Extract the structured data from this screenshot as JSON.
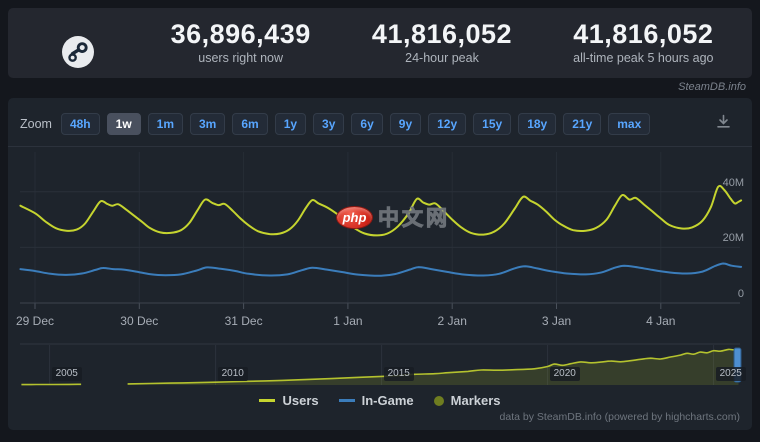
{
  "header": {
    "stats": [
      {
        "value": "36,896,439",
        "label": "users right now"
      },
      {
        "value": "41,816,052",
        "label": "24-hour peak"
      },
      {
        "value": "41,816,052",
        "label": "all-time peak 5 hours ago"
      }
    ]
  },
  "site_tag": "SteamDB.info",
  "toolbar": {
    "zoom_label": "Zoom",
    "ranges": [
      "48h",
      "1w",
      "1m",
      "3m",
      "6m",
      "1y",
      "3y",
      "6y",
      "9y",
      "12y",
      "15y",
      "18y",
      "21y",
      "max"
    ],
    "selected_range": "1w"
  },
  "watermark": {
    "badge": "php",
    "text": "中文网"
  },
  "footer": {
    "credit": "data by SteamDB.info (powered by highcharts.com)"
  },
  "colors": {
    "users": "#c5d42f",
    "in_game": "#3b7dbb",
    "markers": "#6f7d20",
    "accent_blue": "#58a6ff",
    "navigator_line": "#b4c22e",
    "navigator_fill": "rgba(180,196,46,0.16)",
    "handle": "#4e8fd0"
  },
  "chart_data": {
    "type": "line",
    "title": "",
    "x_unit": "days since 29 Dec",
    "x_ticks": [
      {
        "label": "29 Dec",
        "day": 0
      },
      {
        "label": "30 Dec",
        "day": 1
      },
      {
        "label": "31 Dec",
        "day": 2
      },
      {
        "label": "1 Jan",
        "day": 3
      },
      {
        "label": "2 Jan",
        "day": 4
      },
      {
        "label": "3 Jan",
        "day": 5
      },
      {
        "label": "4 Jan",
        "day": 6
      }
    ],
    "y_ticks": [
      {
        "label": "40M",
        "value": 40
      },
      {
        "label": "20M",
        "value": 20
      },
      {
        "label": "0",
        "value": 0
      }
    ],
    "ylim": [
      0,
      54.5
    ],
    "xlim_days": [
      -0.14,
      6.77
    ],
    "series": [
      {
        "name": "Users",
        "unit": "millions",
        "points": [
          [
            -0.14,
            35.0
          ],
          [
            0.0,
            32.3
          ],
          [
            0.1,
            29.3
          ],
          [
            0.2,
            26.9
          ],
          [
            0.3,
            26.0
          ],
          [
            0.4,
            26.4
          ],
          [
            0.48,
            28.6
          ],
          [
            0.56,
            33.0
          ],
          [
            0.63,
            36.6
          ],
          [
            0.69,
            35.7
          ],
          [
            0.74,
            35.0
          ],
          [
            0.8,
            35.5
          ],
          [
            0.88,
            33.4
          ],
          [
            0.95,
            31.4
          ],
          [
            1.02,
            29.4
          ],
          [
            1.1,
            27.0
          ],
          [
            1.2,
            25.4
          ],
          [
            1.3,
            25.2
          ],
          [
            1.4,
            26.2
          ],
          [
            1.48,
            28.8
          ],
          [
            1.56,
            33.5
          ],
          [
            1.63,
            37.2
          ],
          [
            1.7,
            36.0
          ],
          [
            1.76,
            35.2
          ],
          [
            1.82,
            35.6
          ],
          [
            1.9,
            33.0
          ],
          [
            1.97,
            30.4
          ],
          [
            2.05,
            27.9
          ],
          [
            2.14,
            25.8
          ],
          [
            2.25,
            24.8
          ],
          [
            2.35,
            25.0
          ],
          [
            2.44,
            26.5
          ],
          [
            2.52,
            29.6
          ],
          [
            2.6,
            34.4
          ],
          [
            2.66,
            37.0
          ],
          [
            2.72,
            35.8
          ],
          [
            2.8,
            34.4
          ],
          [
            2.9,
            31.9
          ],
          [
            2.98,
            29.4
          ],
          [
            3.06,
            27.0
          ],
          [
            3.16,
            25.0
          ],
          [
            3.28,
            24.3
          ],
          [
            3.38,
            25.0
          ],
          [
            3.48,
            27.6
          ],
          [
            3.58,
            32.2
          ],
          [
            3.66,
            37.4
          ],
          [
            3.72,
            36.2
          ],
          [
            3.78,
            35.4
          ],
          [
            3.84,
            35.8
          ],
          [
            3.92,
            33.0
          ],
          [
            4.0,
            30.0
          ],
          [
            4.08,
            27.4
          ],
          [
            4.18,
            25.2
          ],
          [
            4.3,
            24.6
          ],
          [
            4.4,
            25.6
          ],
          [
            4.5,
            28.6
          ],
          [
            4.6,
            34.0
          ],
          [
            4.68,
            38.2
          ],
          [
            4.75,
            36.8
          ],
          [
            4.82,
            35.4
          ],
          [
            4.9,
            32.9
          ],
          [
            4.98,
            30.0
          ],
          [
            5.06,
            27.9
          ],
          [
            5.16,
            26.2
          ],
          [
            5.28,
            26.0
          ],
          [
            5.38,
            27.0
          ],
          [
            5.48,
            30.0
          ],
          [
            5.56,
            35.0
          ],
          [
            5.63,
            38.8
          ],
          [
            5.7,
            37.2
          ],
          [
            5.76,
            37.8
          ],
          [
            5.84,
            35.4
          ],
          [
            5.92,
            32.9
          ],
          [
            6.0,
            30.4
          ],
          [
            6.08,
            28.1
          ],
          [
            6.2,
            26.8
          ],
          [
            6.3,
            27.2
          ],
          [
            6.4,
            29.6
          ],
          [
            6.48,
            34.5
          ],
          [
            6.55,
            41.8
          ],
          [
            6.61,
            40.6
          ],
          [
            6.67,
            37.5
          ],
          [
            6.71,
            35.8
          ],
          [
            6.74,
            36.3
          ],
          [
            6.77,
            36.9
          ]
        ]
      },
      {
        "name": "In-Game",
        "unit": "millions",
        "points": [
          [
            -0.14,
            12.2
          ],
          [
            0.0,
            11.5
          ],
          [
            0.15,
            10.5
          ],
          [
            0.3,
            10.1
          ],
          [
            0.45,
            10.6
          ],
          [
            0.58,
            11.9
          ],
          [
            0.65,
            12.6
          ],
          [
            0.75,
            12.2
          ],
          [
            0.85,
            12.0
          ],
          [
            0.97,
            11.3
          ],
          [
            1.1,
            10.4
          ],
          [
            1.25,
            10.0
          ],
          [
            1.4,
            10.3
          ],
          [
            1.55,
            11.7
          ],
          [
            1.65,
            12.8
          ],
          [
            1.78,
            12.3
          ],
          [
            1.92,
            11.5
          ],
          [
            2.05,
            10.5
          ],
          [
            2.25,
            9.9
          ],
          [
            2.42,
            10.3
          ],
          [
            2.56,
            11.8
          ],
          [
            2.66,
            12.7
          ],
          [
            2.8,
            12.0
          ],
          [
            2.95,
            11.1
          ],
          [
            3.1,
            10.2
          ],
          [
            3.3,
            9.8
          ],
          [
            3.45,
            10.4
          ],
          [
            3.6,
            12.1
          ],
          [
            3.68,
            12.9
          ],
          [
            3.8,
            12.2
          ],
          [
            3.95,
            11.2
          ],
          [
            4.12,
            10.2
          ],
          [
            4.3,
            9.9
          ],
          [
            4.45,
            10.5
          ],
          [
            4.6,
            12.5
          ],
          [
            4.7,
            13.2
          ],
          [
            4.82,
            12.4
          ],
          [
            4.95,
            11.4
          ],
          [
            5.1,
            10.6
          ],
          [
            5.28,
            10.3
          ],
          [
            5.42,
            10.9
          ],
          [
            5.56,
            12.7
          ],
          [
            5.65,
            13.4
          ],
          [
            5.78,
            12.8
          ],
          [
            5.92,
            11.9
          ],
          [
            6.08,
            11.0
          ],
          [
            6.25,
            10.6
          ],
          [
            6.4,
            11.3
          ],
          [
            6.52,
            13.3
          ],
          [
            6.6,
            14.2
          ],
          [
            6.68,
            13.4
          ],
          [
            6.77,
            13.0
          ]
        ]
      }
    ],
    "navigator": {
      "year_ticks": [
        2005,
        2010,
        2015,
        2020,
        2025
      ],
      "unit": "millions of users, 2004 - 2025",
      "data_gap_years": [
        2006.0,
        2007.3
      ],
      "segments": [
        [
          [
            2004.15,
            0.5
          ],
          [
            2004.6,
            0.55
          ],
          [
            2005.1,
            0.6
          ],
          [
            2005.6,
            0.7
          ],
          [
            2005.95,
            0.75
          ]
        ],
        [
          [
            2007.35,
            1.3
          ],
          [
            2008,
            1.7
          ],
          [
            2009,
            2.4
          ],
          [
            2010,
            3.2
          ],
          [
            2011,
            4.2
          ],
          [
            2012,
            5.2
          ],
          [
            2013,
            6.6
          ],
          [
            2014,
            8.2
          ],
          [
            2015,
            9.8
          ],
          [
            2015.6,
            11.0
          ],
          [
            2016,
            12.2
          ],
          [
            2016.6,
            12.8
          ],
          [
            2017,
            14.0
          ],
          [
            2017.6,
            15.5
          ],
          [
            2018,
            17.0
          ],
          [
            2018.5,
            16.8
          ],
          [
            2019,
            17.4
          ],
          [
            2019.6,
            18.4
          ],
          [
            2020,
            21.0
          ],
          [
            2020.2,
            23.8
          ],
          [
            2020.45,
            22.4
          ],
          [
            2020.7,
            24.2
          ],
          [
            2021,
            26.2
          ],
          [
            2021.3,
            25.2
          ],
          [
            2021.6,
            26.0
          ],
          [
            2021.9,
            27.2
          ],
          [
            2022.2,
            26.4
          ],
          [
            2022.5,
            27.6
          ],
          [
            2022.8,
            29.2
          ],
          [
            2023.1,
            30.4
          ],
          [
            2023.4,
            29.6
          ],
          [
            2023.7,
            31.8
          ],
          [
            2024,
            34.0
          ],
          [
            2024.2,
            36.0
          ],
          [
            2024.4,
            35.0
          ],
          [
            2024.6,
            37.4
          ],
          [
            2024.8,
            36.6
          ],
          [
            2025.0,
            39.0
          ],
          [
            2025.2,
            38.4
          ],
          [
            2025.45,
            40.4
          ],
          [
            2025.6,
            40.0
          ],
          [
            2025.75,
            41.2
          ]
        ]
      ]
    },
    "legend": [
      {
        "label": "Users",
        "swatch": "line",
        "color": "#c5d42f"
      },
      {
        "label": "In-Game",
        "swatch": "line",
        "color": "#3b7dbb"
      },
      {
        "label": "Markers",
        "swatch": "circle",
        "color": "#6f7d20"
      }
    ],
    "legend_position": "bottom-center",
    "grid": true
  }
}
